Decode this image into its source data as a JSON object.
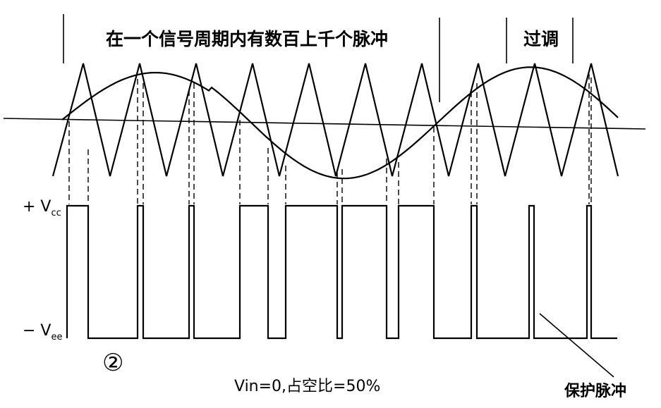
{
  "labels": {
    "top_annotation": "在一个信号周期内有数百上千个脉冲",
    "overmodulation": "过调",
    "positive_supply": "+ V",
    "positive_supply_sub": "cc",
    "negative_supply": "− V",
    "negative_supply_sub": "ee",
    "circle_number": "②",
    "zero_input_note": "Vin=0,占空比=50%",
    "protection_pulse": "保护脉冲"
  }
}
